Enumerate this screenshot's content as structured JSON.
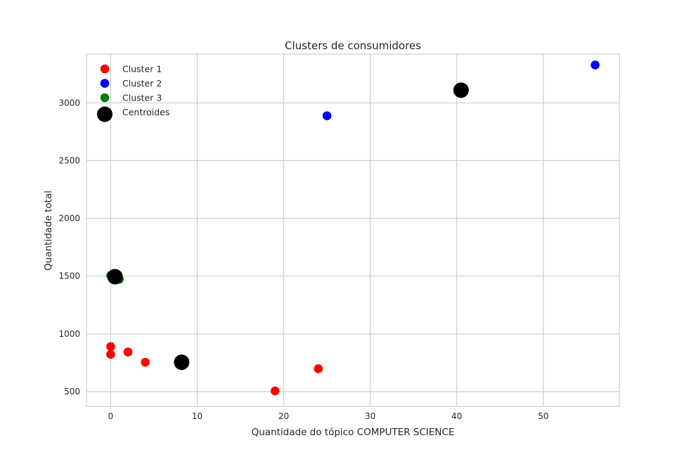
{
  "chart_data": {
    "type": "scatter",
    "title": "Clusters de consumidores",
    "xlabel": "Quantidade do tópico COMPUTER SCIENCE",
    "ylabel": "Quantidade total",
    "xlim": [
      -2.8,
      58.8
    ],
    "ylim": [
      372,
      3422
    ],
    "xticks": [
      0,
      10,
      20,
      30,
      40,
      50
    ],
    "yticks": [
      500,
      1000,
      1500,
      2000,
      2500,
      3000
    ],
    "grid": true,
    "legend_position": "upper-left",
    "series": [
      {
        "name": "Cluster 1",
        "color": "#ff0000",
        "marker": "small",
        "points": [
          [
            0,
            890
          ],
          [
            0,
            822
          ],
          [
            2,
            843
          ],
          [
            4,
            754
          ],
          [
            19,
            506
          ],
          [
            24,
            698
          ]
        ]
      },
      {
        "name": "Cluster 2",
        "color": "#0000ff",
        "marker": "small",
        "points": [
          [
            25,
            2888
          ],
          [
            56,
            3328
          ]
        ]
      },
      {
        "name": "Cluster 3",
        "color": "#008000",
        "marker": "small",
        "points": [
          [
            0,
            1506
          ],
          [
            1,
            1473
          ]
        ]
      },
      {
        "name": "Centroides",
        "color": "#000000",
        "marker": "large",
        "points": [
          [
            8.2,
            754
          ],
          [
            40.5,
            3110
          ],
          [
            0.5,
            1495
          ]
        ]
      }
    ]
  }
}
